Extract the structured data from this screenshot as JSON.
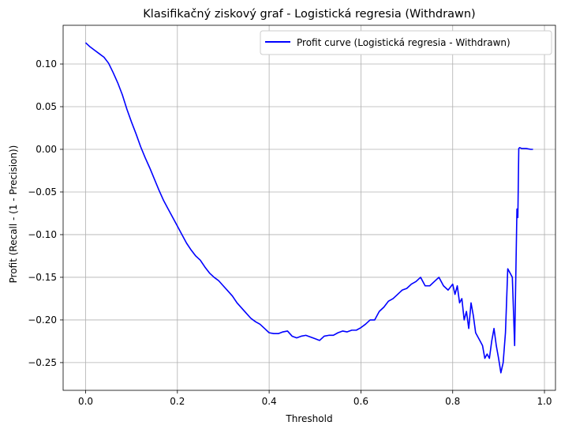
{
  "chart_data": {
    "type": "line",
    "title": "Klasifikačný ziskový graf - Logistická regresia (Withdrawn)",
    "xlabel": "Threshold",
    "ylabel": "Profit (Recall - (1 - Precision))",
    "xlim": [
      -0.049,
      1.024
    ],
    "ylim": [
      -0.2825,
      0.1454
    ],
    "x_ticks": [
      0.0,
      0.2,
      0.4,
      0.6,
      0.8,
      1.0
    ],
    "x_tick_labels": [
      "0.0",
      "0.2",
      "0.4",
      "0.6",
      "0.8",
      "1.0"
    ],
    "y_ticks": [
      0.1,
      0.05,
      0.0,
      -0.05,
      -0.1,
      -0.15,
      -0.2,
      -0.25
    ],
    "y_tick_labels": [
      "0.10",
      "0.05",
      "0.00",
      "−0.05",
      "−0.10",
      "−0.15",
      "−0.20",
      "−0.25"
    ],
    "grid": true,
    "legend_position": "top-right",
    "series": [
      {
        "name": "Profit curve (Logistická regresia - Withdrawn)",
        "color": "#0000ff",
        "x": [
          0.0,
          0.01,
          0.02,
          0.03,
          0.04,
          0.05,
          0.06,
          0.07,
          0.08,
          0.09,
          0.1,
          0.11,
          0.12,
          0.13,
          0.14,
          0.15,
          0.16,
          0.17,
          0.18,
          0.19,
          0.2,
          0.21,
          0.22,
          0.23,
          0.24,
          0.25,
          0.26,
          0.27,
          0.28,
          0.29,
          0.3,
          0.31,
          0.32,
          0.33,
          0.34,
          0.35,
          0.36,
          0.37,
          0.38,
          0.39,
          0.4,
          0.41,
          0.42,
          0.43,
          0.44,
          0.45,
          0.46,
          0.47,
          0.48,
          0.49,
          0.5,
          0.51,
          0.52,
          0.53,
          0.54,
          0.55,
          0.56,
          0.57,
          0.58,
          0.59,
          0.6,
          0.61,
          0.62,
          0.63,
          0.64,
          0.65,
          0.66,
          0.67,
          0.68,
          0.69,
          0.7,
          0.71,
          0.72,
          0.73,
          0.74,
          0.75,
          0.76,
          0.77,
          0.78,
          0.79,
          0.8,
          0.805,
          0.81,
          0.815,
          0.82,
          0.825,
          0.83,
          0.835,
          0.84,
          0.845,
          0.85,
          0.855,
          0.86,
          0.865,
          0.87,
          0.875,
          0.88,
          0.885,
          0.89,
          0.895,
          0.9,
          0.905,
          0.91,
          0.915,
          0.92,
          0.925,
          0.93,
          0.935,
          0.94,
          0.942,
          0.944,
          0.946,
          0.95,
          0.96,
          0.97,
          0.975
        ],
        "y": [
          0.125,
          0.12,
          0.116,
          0.112,
          0.108,
          0.101,
          0.09,
          0.078,
          0.064,
          0.047,
          0.032,
          0.018,
          0.003,
          -0.01,
          -0.022,
          -0.035,
          -0.048,
          -0.06,
          -0.07,
          -0.08,
          -0.09,
          -0.1,
          -0.11,
          -0.118,
          -0.125,
          -0.13,
          -0.138,
          -0.145,
          -0.15,
          -0.154,
          -0.16,
          -0.166,
          -0.172,
          -0.18,
          -0.186,
          -0.192,
          -0.198,
          -0.202,
          -0.205,
          -0.21,
          -0.215,
          -0.216,
          -0.216,
          -0.214,
          -0.213,
          -0.219,
          -0.221,
          -0.219,
          -0.218,
          -0.22,
          -0.222,
          -0.224,
          -0.219,
          -0.218,
          -0.218,
          -0.215,
          -0.213,
          -0.214,
          -0.212,
          -0.212,
          -0.209,
          -0.205,
          -0.2,
          -0.2,
          -0.19,
          -0.185,
          -0.178,
          -0.175,
          -0.17,
          -0.165,
          -0.163,
          -0.158,
          -0.155,
          -0.15,
          -0.16,
          -0.16,
          -0.155,
          -0.15,
          -0.16,
          -0.165,
          -0.158,
          -0.17,
          -0.16,
          -0.18,
          -0.175,
          -0.2,
          -0.19,
          -0.21,
          -0.18,
          -0.195,
          -0.215,
          -0.22,
          -0.225,
          -0.23,
          -0.245,
          -0.24,
          -0.245,
          -0.225,
          -0.21,
          -0.23,
          -0.245,
          -0.262,
          -0.25,
          -0.215,
          -0.14,
          -0.145,
          -0.15,
          -0.23,
          -0.07,
          -0.08,
          0.001,
          0.002,
          0.001,
          0.001,
          0.0,
          0.0
        ]
      }
    ]
  }
}
